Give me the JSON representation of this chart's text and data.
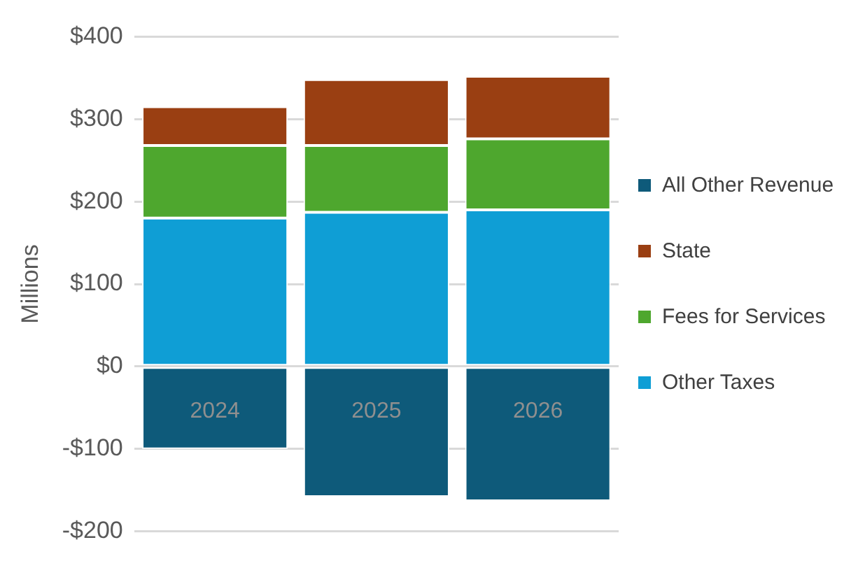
{
  "chart_data": {
    "type": "bar",
    "stacked": true,
    "ylabel": "Millions",
    "categories": [
      "2024",
      "2025",
      "2026"
    ],
    "series": [
      {
        "name": "Other Taxes",
        "color": "#0f9ed5",
        "values": [
          180,
          187,
          190
        ]
      },
      {
        "name": "Fees for Services",
        "color": "#4ea72e",
        "values": [
          88,
          81,
          86
        ]
      },
      {
        "name": "State",
        "color": "#9a3f12",
        "values": [
          47,
          80,
          76
        ]
      },
      {
        "name": "All Other Revenue",
        "color": "#0e5a7a",
        "values": [
          -100,
          -158,
          -163
        ]
      }
    ],
    "ylim": [
      -200,
      400
    ],
    "yticks": [
      {
        "value": -200,
        "label": "-$200"
      },
      {
        "value": -100,
        "label": "-$100"
      },
      {
        "value": 0,
        "label": "$0"
      },
      {
        "value": 100,
        "label": "$100"
      },
      {
        "value": 200,
        "label": "$200"
      },
      {
        "value": 300,
        "label": "$300"
      },
      {
        "value": 400,
        "label": "$400"
      }
    ],
    "grid": "y",
    "legend": "right"
  }
}
